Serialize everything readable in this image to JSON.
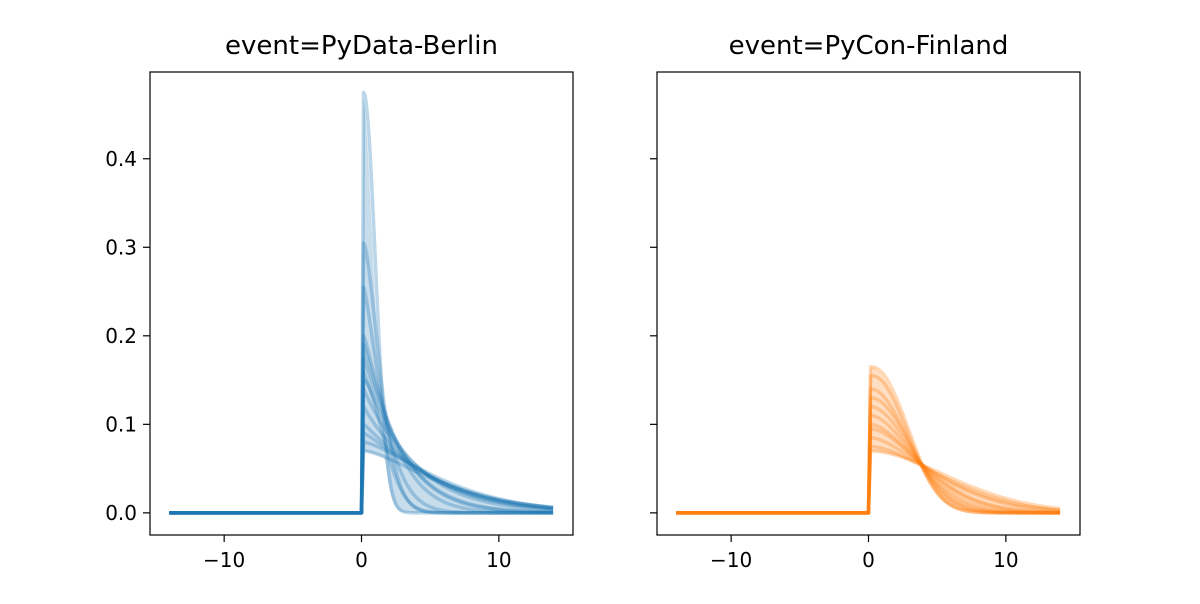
{
  "chart_data": [
    {
      "type": "line",
      "title": "event=PyData-Berlin",
      "color": "#1f77b4",
      "xlim": [
        -15.4,
        15.4
      ],
      "ylim": [
        -0.025,
        0.498
      ],
      "xticks": [
        -10,
        0,
        10
      ],
      "xtick_labels": [
        "−10",
        "0",
        "10"
      ],
      "yticks": [
        0.0,
        0.1,
        0.2,
        0.3,
        0.4
      ],
      "ytick_labels": [
        "0.0",
        "0.1",
        "0.2",
        "0.3",
        "0.4"
      ],
      "x_range": [
        -14,
        14
      ],
      "curve_form": "y = 0 for x<0; y = amplitude*exp(-(x/scale)^shape) for x>=0",
      "series": [
        {
          "amplitude": 0.475,
          "scale": 1.2,
          "shape": 2.0
        },
        {
          "amplitude": 0.305,
          "scale": 1.6,
          "shape": 1.6
        },
        {
          "amplitude": 0.255,
          "scale": 1.8,
          "shape": 1.3
        },
        {
          "amplitude": 0.2,
          "scale": 2.5,
          "shape": 1.2
        },
        {
          "amplitude": 0.19,
          "scale": 2.8,
          "shape": 1.1
        },
        {
          "amplitude": 0.175,
          "scale": 3.0,
          "shape": 1.1
        },
        {
          "amplitude": 0.16,
          "scale": 3.5,
          "shape": 1.0
        },
        {
          "amplitude": 0.15,
          "scale": 2.0,
          "shape": 1.8
        },
        {
          "amplitude": 0.14,
          "scale": 4.0,
          "shape": 1.0
        },
        {
          "amplitude": 0.12,
          "scale": 4.5,
          "shape": 1.0
        },
        {
          "amplitude": 0.1,
          "scale": 5.5,
          "shape": 1.1
        },
        {
          "amplitude": 0.09,
          "scale": 6.0,
          "shape": 1.2
        },
        {
          "amplitude": 0.08,
          "scale": 7.0,
          "shape": 1.4
        },
        {
          "amplitude": 0.07,
          "scale": 7.0,
          "shape": 1.5
        }
      ]
    },
    {
      "type": "line",
      "title": "event=PyCon-Finland",
      "color": "#ff7f0e",
      "xlim": [
        -15.4,
        15.4
      ],
      "ylim": [
        -0.025,
        0.498
      ],
      "xticks": [
        -10,
        0,
        10
      ],
      "xtick_labels": [
        "−10",
        "0",
        "10"
      ],
      "yticks": [
        0.0,
        0.1,
        0.2,
        0.3,
        0.4
      ],
      "ytick_labels": [],
      "x_range": [
        -14,
        14
      ],
      "curve_form": "y = 0 for x<0; y = amplitude*exp(-(x/scale)^shape) for x>=0",
      "series": [
        {
          "amplitude": 0.165,
          "scale": 3.6,
          "shape": 2.2
        },
        {
          "amplitude": 0.155,
          "scale": 3.6,
          "shape": 2.2
        },
        {
          "amplitude": 0.14,
          "scale": 3.8,
          "shape": 2.0
        },
        {
          "amplitude": 0.13,
          "scale": 4.0,
          "shape": 2.0
        },
        {
          "amplitude": 0.12,
          "scale": 4.2,
          "shape": 1.9
        },
        {
          "amplitude": 0.11,
          "scale": 4.5,
          "shape": 1.8
        },
        {
          "amplitude": 0.1,
          "scale": 5.0,
          "shape": 1.7
        },
        {
          "amplitude": 0.095,
          "scale": 5.3,
          "shape": 1.7
        },
        {
          "amplitude": 0.085,
          "scale": 6.2,
          "shape": 1.6
        },
        {
          "amplitude": 0.075,
          "scale": 7.0,
          "shape": 1.7
        },
        {
          "amplitude": 0.07,
          "scale": 8.0,
          "shape": 1.8
        }
      ]
    }
  ]
}
